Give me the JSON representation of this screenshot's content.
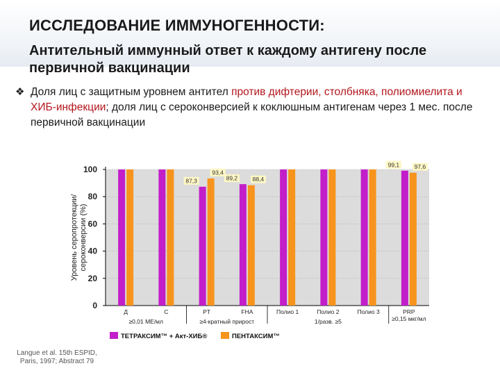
{
  "header": {
    "title": "ИССЛЕДОВАНИЕ ИММУНОГЕННОСТИ:",
    "subtitle": "Антительный иммунный ответ к каждому антигену после первичной вакцинации"
  },
  "bullet": {
    "icon": "diamond-bullet-icon",
    "part1": "Доля лиц с защитным уровнем антител ",
    "part2_highlight": "против дифтерии, столбняка, полиомиелита и ХИБ-инфекции",
    "part3": "; доля лиц с сероконверсией к коклюшным антигенам через 1 мес. после первичной вакцинации"
  },
  "chart_data": {
    "type": "bar",
    "ylabel": "Уровень серопротекции/ сероконверсии (%)",
    "ylim": [
      0,
      100
    ],
    "yticks": [
      "0",
      "20",
      "40",
      "60",
      "80",
      "100"
    ],
    "categories": [
      "Д",
      "С",
      "PT",
      "FHA",
      "Полио 1",
      "Полио 2",
      "Полио 3",
      "PRP"
    ],
    "group_labels": [
      "≥0,01 МЕ/мл",
      "≥4-кратный прирост",
      "1/разв. ≥5",
      "≥0,15 мкг/мл"
    ],
    "series": [
      {
        "name": "ТЕТРАКСИМ™ + Акт-ХИБ®",
        "color": "#c21ec9",
        "values": [
          100,
          100,
          87.3,
          89.2,
          100,
          100,
          100,
          99.1
        ]
      },
      {
        "name": "ПЕНТАКСИМ™",
        "color": "#f7941d",
        "values": [
          100,
          100,
          93.4,
          88.4,
          100,
          100,
          100,
          97.6
        ]
      }
    ],
    "data_labels": [
      {
        "category": "PT",
        "series": 0,
        "text": "87,3"
      },
      {
        "category": "PT",
        "series": 1,
        "text": "93,4"
      },
      {
        "category": "FHA",
        "series": 0,
        "text": "89,2"
      },
      {
        "category": "FHA",
        "series": 1,
        "text": "88,4"
      },
      {
        "category": "PRP",
        "series": 0,
        "text": "99,1"
      },
      {
        "category": "PRP",
        "series": 1,
        "text": "97,6"
      }
    ],
    "colors": {
      "plot_bg": "#dcdcdc",
      "grid": "#9a9a9a",
      "label_bg": "#fff7c4"
    }
  },
  "source": "Langue et al. 15th ESPID, Paris, 1997; Abstract 79"
}
